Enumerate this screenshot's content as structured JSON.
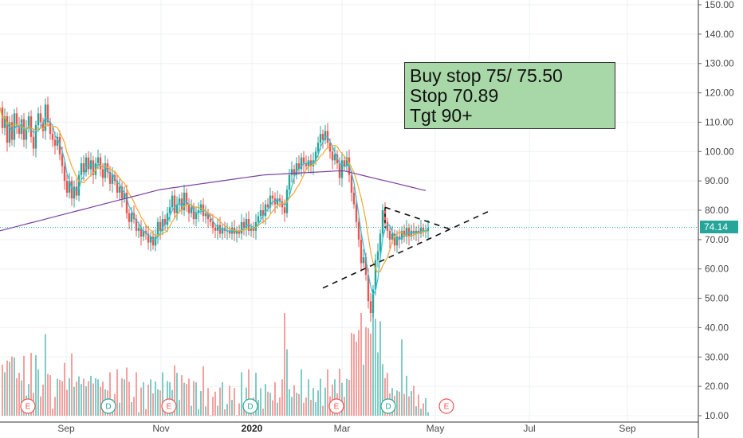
{
  "chart_data": {
    "type": "candlestick",
    "y_axis": {
      "ticks": [
        "150.00",
        "140.00",
        "130.00",
        "120.00",
        "110.00",
        "100.00",
        "90.00",
        "80.00",
        "70.00",
        "60.00",
        "50.00",
        "40.00",
        "30.00",
        "20.00",
        "10.00"
      ],
      "side": "right",
      "grid": true
    },
    "x_axis": {
      "labels": [
        "Sep",
        "Nov",
        "2020",
        "Mar",
        "May",
        "Jul",
        "Sep"
      ],
      "bold_labels": [
        "2020"
      ],
      "grid": true
    },
    "last_price": "74.14",
    "last_price_line_value": 74.14,
    "price": {
      "points": [
        [
          0,
          115
        ],
        [
          3,
          108
        ],
        [
          6,
          112
        ],
        [
          9,
          103
        ],
        [
          12,
          110
        ],
        [
          15,
          104
        ],
        [
          18,
          113
        ],
        [
          21,
          109
        ],
        [
          24,
          106
        ],
        [
          27,
          111
        ],
        [
          30,
          104
        ],
        [
          33,
          108
        ],
        [
          36,
          112
        ],
        [
          39,
          105
        ],
        [
          42,
          101
        ],
        [
          45,
          109
        ],
        [
          48,
          113
        ],
        [
          51,
          110
        ],
        [
          54,
          107
        ],
        [
          57,
          116
        ],
        [
          60,
          110
        ],
        [
          63,
          106
        ],
        [
          66,
          104
        ],
        [
          69,
          102
        ],
        [
          72,
          105
        ],
        [
          75,
          99
        ],
        [
          78,
          95
        ],
        [
          81,
          90
        ],
        [
          84,
          86
        ],
        [
          87,
          90
        ],
        [
          90,
          84
        ],
        [
          93,
          88
        ],
        [
          96,
          85
        ],
        [
          99,
          92
        ],
        [
          102,
          96
        ],
        [
          105,
          93
        ],
        [
          108,
          98
        ],
        [
          111,
          94
        ],
        [
          114,
          97
        ],
        [
          117,
          92
        ],
        [
          120,
          96
        ],
        [
          123,
          98
        ],
        [
          126,
          94
        ],
        [
          129,
          91
        ],
        [
          132,
          96
        ],
        [
          135,
          93
        ],
        [
          138,
          89
        ],
        [
          141,
          92
        ],
        [
          144,
          90
        ],
        [
          147,
          86
        ],
        [
          150,
          88
        ],
        [
          153,
          84
        ],
        [
          156,
          86
        ],
        [
          159,
          79
        ],
        [
          162,
          76
        ],
        [
          165,
          79
        ],
        [
          168,
          77
        ],
        [
          171,
          73
        ],
        [
          174,
          74
        ],
        [
          177,
          71
        ],
        [
          180,
          73
        ],
        [
          183,
          72
        ],
        [
          186,
          69
        ],
        [
          189,
          71
        ],
        [
          192,
          68
        ],
        [
          195,
          71
        ],
        [
          198,
          76
        ],
        [
          201,
          73
        ],
        [
          204,
          77
        ],
        [
          207,
          75
        ],
        [
          210,
          79
        ],
        [
          213,
          81
        ],
        [
          216,
          85
        ],
        [
          219,
          79
        ],
        [
          222,
          82
        ],
        [
          225,
          84
        ],
        [
          228,
          80
        ],
        [
          231,
          86
        ],
        [
          234,
          82
        ],
        [
          237,
          79
        ],
        [
          240,
          81
        ],
        [
          243,
          77
        ],
        [
          246,
          79
        ],
        [
          249,
          80
        ],
        [
          252,
          82
        ],
        [
          255,
          78
        ],
        [
          258,
          79
        ],
        [
          261,
          77
        ],
        [
          264,
          76
        ],
        [
          267,
          74
        ],
        [
          270,
          73
        ],
        [
          273,
          75
        ],
        [
          276,
          72
        ],
        [
          279,
          74
        ],
        [
          282,
          73
        ],
        [
          285,
          73
        ],
        [
          288,
          72
        ],
        [
          291,
          74
        ],
        [
          294,
          72
        ],
        [
          297,
          73
        ],
        [
          300,
          72
        ],
        [
          303,
          76
        ],
        [
          306,
          74
        ],
        [
          309,
          77
        ],
        [
          312,
          73
        ],
        [
          315,
          74
        ],
        [
          318,
          73
        ],
        [
          321,
          76
        ],
        [
          324,
          78
        ],
        [
          327,
          80
        ],
        [
          330,
          78
        ],
        [
          333,
          82
        ],
        [
          336,
          81
        ],
        [
          339,
          85
        ],
        [
          342,
          84
        ],
        [
          345,
          82
        ],
        [
          348,
          84
        ],
        [
          351,
          83
        ],
        [
          354,
          81
        ],
        [
          357,
          79
        ],
        [
          360,
          87
        ],
        [
          363,
          92
        ],
        [
          366,
          94
        ],
        [
          369,
          92
        ],
        [
          372,
          96
        ],
        [
          375,
          94
        ],
        [
          378,
          98
        ],
        [
          381,
          96
        ],
        [
          384,
          95
        ],
        [
          387,
          97
        ],
        [
          390,
          95
        ],
        [
          393,
          97
        ],
        [
          396,
          100
        ],
        [
          399,
          103
        ],
        [
          402,
          106
        ],
        [
          405,
          104
        ],
        [
          408,
          107
        ],
        [
          411,
          103
        ],
        [
          414,
          100
        ],
        [
          417,
          97
        ],
        [
          420,
          99
        ],
        [
          423,
          96
        ],
        [
          426,
          91
        ],
        [
          429,
          97
        ],
        [
          432,
          95
        ],
        [
          435,
          98
        ],
        [
          438,
          92
        ],
        [
          441,
          86
        ],
        [
          444,
          82
        ],
        [
          447,
          76
        ],
        [
          450,
          70
        ],
        [
          453,
          62
        ],
        [
          456,
          64
        ],
        [
          459,
          58
        ],
        [
          462,
          49
        ],
        [
          465,
          45
        ],
        [
          468,
          53
        ],
        [
          471,
          63
        ],
        [
          474,
          66
        ],
        [
          477,
          72
        ],
        [
          480,
          80
        ],
        [
          483,
          76
        ],
        [
          486,
          73
        ],
        [
          489,
          70
        ],
        [
          492,
          72
        ],
        [
          495,
          68
        ],
        [
          498,
          71
        ],
        [
          501,
          70
        ],
        [
          504,
          73
        ],
        [
          507,
          71
        ],
        [
          510,
          74
        ],
        [
          513,
          71
        ],
        [
          516,
          73
        ],
        [
          519,
          72
        ],
        [
          522,
          73
        ],
        [
          525,
          72
        ],
        [
          528,
          74
        ],
        [
          531,
          73
        ],
        [
          534,
          73
        ],
        [
          537,
          74
        ]
      ]
    },
    "ma_fast_color": "#26c6da",
    "ma_mid_color": "#f0a830",
    "ma_slow_color": "#7b3fa0",
    "up_color": "#26a69a",
    "down_color": "#ef5350",
    "volume": {
      "max_label_value": 45,
      "note": "volume bars along bottom"
    },
    "event_markers": [
      {
        "label": "E",
        "kind": "earnings"
      },
      {
        "label": "D",
        "kind": "dividend"
      },
      {
        "label": "E",
        "kind": "earnings"
      },
      {
        "label": "D",
        "kind": "dividend"
      },
      {
        "label": "E",
        "kind": "earnings"
      },
      {
        "label": "D",
        "kind": "dividend"
      },
      {
        "label": "E",
        "kind": "earnings"
      }
    ],
    "annotations": {
      "note_lines": [
        "Buy stop 75/ 75.50",
        "Stop 70.89",
        "Tgt 90+"
      ],
      "note_color": "#a8d8a8"
    }
  }
}
